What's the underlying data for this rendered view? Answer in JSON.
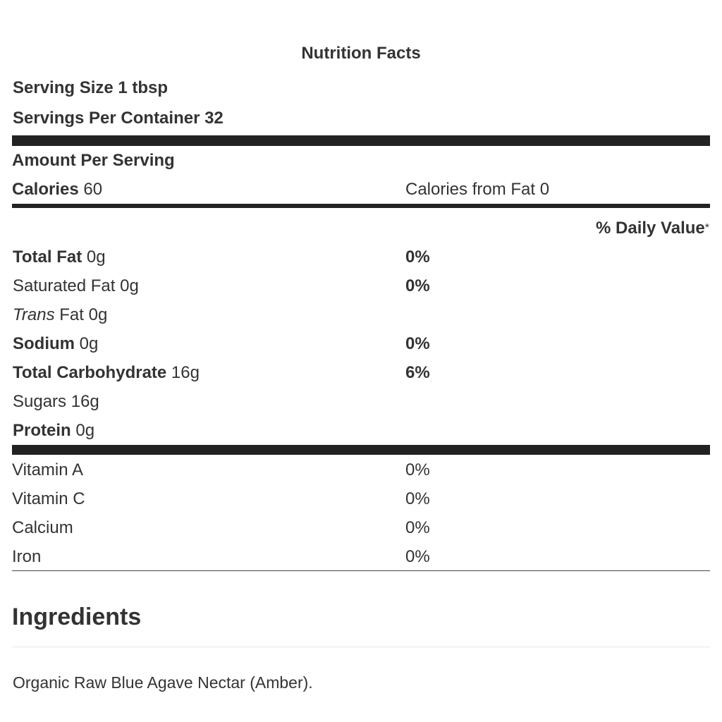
{
  "title": "Nutrition Facts",
  "serving_size": "Serving Size 1 tbsp",
  "servings_per_container": "Servings Per Container 32",
  "amount_per_serving": "Amount Per Serving",
  "calories": {
    "label": "Calories",
    "value": "60"
  },
  "calories_from_fat": "Calories from Fat 0",
  "daily_value_header": {
    "label": "% Daily Value",
    "note": "*"
  },
  "nutrients": [
    {
      "name": "Total Fat",
      "amount": "0g",
      "daily_value": "0%",
      "style": "bold"
    },
    {
      "name": "Saturated Fat",
      "amount": "0g",
      "daily_value": "0%",
      "style": "plain"
    },
    {
      "name": "Trans",
      "name_rest": "Fat",
      "amount": "0g",
      "style": "italic"
    },
    {
      "name": "Sodium",
      "amount": "0g",
      "daily_value": "0%",
      "style": "bold"
    },
    {
      "name": "Total Carbohydrate",
      "amount": "16g",
      "daily_value": "6%",
      "style": "bold"
    },
    {
      "name": "Sugars",
      "amount": "16g",
      "style": "plain"
    },
    {
      "name": "Protein",
      "amount": "0g",
      "style": "bold"
    }
  ],
  "vitamins": [
    {
      "name": "Vitamin A",
      "daily_value": "0%"
    },
    {
      "name": "Vitamin C",
      "daily_value": "0%"
    },
    {
      "name": "Calcium",
      "daily_value": "0%"
    },
    {
      "name": "Iron",
      "daily_value": "0%"
    }
  ],
  "ingredients": {
    "heading": "Ingredients",
    "text": "Organic Raw Blue Agave Nectar (Amber)."
  }
}
